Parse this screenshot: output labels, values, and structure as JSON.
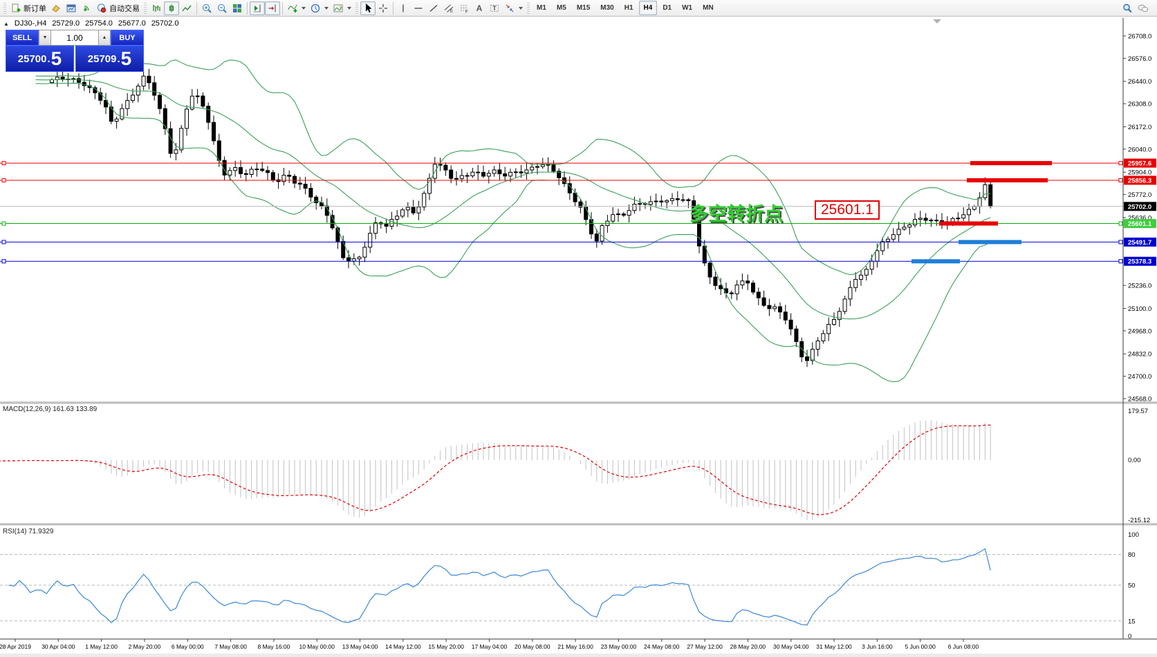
{
  "toolbar": {
    "new_order_label": "新订单",
    "auto_trading_label": "自动交易",
    "timeframes": [
      "M1",
      "M5",
      "M15",
      "M30",
      "H1",
      "H4",
      "D1",
      "W1",
      "MN"
    ],
    "active_timeframe": "H4"
  },
  "chart": {
    "header": {
      "expand_icon": "▲",
      "title": "DJ30-,H4",
      "open": "25729.0",
      "high": "25754.0",
      "low": "25677.0",
      "close": "25702.0"
    },
    "trade_panel": {
      "sell_label": "SELL",
      "buy_label": "BUY",
      "volume": "1.00",
      "sell_price_main": "25700",
      "sell_price_frac": "5",
      "buy_price_main": "25709",
      "buy_price_frac": "5"
    },
    "annotation": {
      "text": "多空转折点",
      "price_label": "25601.1"
    }
  },
  "chart_data": {
    "type": "candlestick",
    "symbol": "DJ30-",
    "timeframe": "H4",
    "last_ohlc": {
      "open": 25729.0,
      "high": 25754.0,
      "low": 25677.0,
      "close": 25702.0
    },
    "bid": 25700.5,
    "ask": 25709.5,
    "current_price": 25702.0,
    "price_axis_ticks": [
      26708.0,
      26576.0,
      26440.0,
      26308.0,
      26172.0,
      26040.0,
      25904.0,
      25772.0,
      25636.0,
      25236.0,
      25100.0,
      24968.0,
      24832.0,
      24700.0,
      24568.0
    ],
    "time_axis_labels": [
      "28 Apr 2019",
      "30 Apr 04:00",
      "1 May 12:00",
      "2 May 20:00",
      "6 May 00:00",
      "7 May 08:00",
      "8 May 16:00",
      "10 May 00:00",
      "13 May 04:00",
      "14 May 12:00",
      "15 May 20:00",
      "17 May 04:00",
      "20 May 08:00",
      "21 May 16:00",
      "23 May 00:00",
      "24 May 08:00",
      "27 May 12:00",
      "28 May 20:00",
      "30 May 04:00",
      "31 May 12:00",
      "3 Jun 16:00",
      "5 Jun 00:00",
      "6 Jun 08:00"
    ],
    "levels": [
      {
        "price": 25957.6,
        "line_color": "#f20000",
        "badge_bg": "#e80000",
        "thick": [
          1403,
          1521
        ],
        "thick_color": "#e80000"
      },
      {
        "price": 25856.3,
        "line_color": "#f20000",
        "badge_bg": "#e80000",
        "thick": [
          1398,
          1515
        ],
        "thick_color": "#e80000"
      },
      {
        "price": 25601.1,
        "line_color": "#00b400",
        "badge_bg": "#3fce3f",
        "thick": [
          1358,
          1443
        ],
        "thick_color": "#e80000"
      },
      {
        "price": 25491.7,
        "line_color": "#0000d8",
        "badge_bg": "#0000d0",
        "thick": [
          1386,
          1477
        ],
        "thick_color": "#1e7fd8"
      },
      {
        "price": 25378.3,
        "line_color": "#0000d8",
        "badge_bg": "#0000d0",
        "thick": [
          1318,
          1388
        ],
        "thick_color": "#1e7fd8"
      }
    ],
    "price_path": [
      [
        75,
        26450
      ],
      [
        120,
        26440
      ],
      [
        135,
        26390
      ],
      [
        150,
        26310
      ],
      [
        163,
        26160
      ],
      [
        172,
        26250
      ],
      [
        185,
        26330
      ],
      [
        200,
        26430
      ],
      [
        210,
        26480
      ],
      [
        222,
        26370
      ],
      [
        235,
        26210
      ],
      [
        248,
        26000
      ],
      [
        256,
        26050
      ],
      [
        268,
        26280
      ],
      [
        278,
        26360
      ],
      [
        290,
        26330
      ],
      [
        302,
        26180
      ],
      [
        313,
        26010
      ],
      [
        325,
        25900
      ],
      [
        340,
        25940
      ],
      [
        355,
        25880
      ],
      [
        370,
        25920
      ],
      [
        385,
        25900
      ],
      [
        400,
        25860
      ],
      [
        415,
        25900
      ],
      [
        428,
        25830
      ],
      [
        443,
        25790
      ],
      [
        458,
        25720
      ],
      [
        470,
        25700
      ],
      [
        483,
        25560
      ],
      [
        495,
        25400
      ],
      [
        508,
        25360
      ],
      [
        520,
        25400
      ],
      [
        533,
        25530
      ],
      [
        546,
        25640
      ],
      [
        558,
        25580
      ],
      [
        572,
        25630
      ],
      [
        586,
        25690
      ],
      [
        600,
        25670
      ],
      [
        614,
        25790
      ],
      [
        628,
        25960
      ],
      [
        642,
        25910
      ],
      [
        656,
        25850
      ],
      [
        670,
        25890
      ],
      [
        684,
        25920
      ],
      [
        698,
        25880
      ],
      [
        712,
        25900
      ],
      [
        726,
        25880
      ],
      [
        740,
        25910
      ],
      [
        754,
        25920
      ],
      [
        768,
        25920
      ],
      [
        782,
        25940
      ],
      [
        796,
        25930
      ],
      [
        810,
        25880
      ],
      [
        824,
        25790
      ],
      [
        838,
        25700
      ],
      [
        852,
        25560
      ],
      [
        862,
        25480
      ],
      [
        872,
        25600
      ],
      [
        886,
        25670
      ],
      [
        900,
        25650
      ],
      [
        914,
        25690
      ],
      [
        928,
        25710
      ],
      [
        942,
        25730
      ],
      [
        956,
        25750
      ],
      [
        970,
        25740
      ],
      [
        984,
        25740
      ],
      [
        998,
        25710
      ],
      [
        1006,
        25580
      ],
      [
        1014,
        25420
      ],
      [
        1026,
        25300
      ],
      [
        1040,
        25220
      ],
      [
        1054,
        25160
      ],
      [
        1066,
        25230
      ],
      [
        1080,
        25270
      ],
      [
        1094,
        25180
      ],
      [
        1108,
        25110
      ],
      [
        1122,
        25090
      ],
      [
        1136,
        25030
      ],
      [
        1148,
        24940
      ],
      [
        1158,
        24840
      ],
      [
        1168,
        24800
      ],
      [
        1180,
        24900
      ],
      [
        1194,
        24960
      ],
      [
        1208,
        25040
      ],
      [
        1222,
        25160
      ],
      [
        1235,
        25290
      ],
      [
        1250,
        25300
      ],
      [
        1264,
        25400
      ],
      [
        1278,
        25490
      ],
      [
        1292,
        25550
      ],
      [
        1306,
        25590
      ],
      [
        1320,
        25610
      ],
      [
        1334,
        25620
      ],
      [
        1348,
        25610
      ],
      [
        1362,
        25620
      ],
      [
        1376,
        25630
      ],
      [
        1390,
        25645
      ],
      [
        1402,
        25665
      ],
      [
        1412,
        25705
      ],
      [
        1421,
        25805
      ],
      [
        1429,
        25830
      ],
      [
        1435,
        25702
      ]
    ],
    "indicators": {
      "bollinger": {
        "period": 20,
        "deviation": 2,
        "color": "#3aa05a"
      },
      "macd": {
        "label": "MACD(12,26,9)",
        "display": "MACD(12,26,9) 161.63 133.89",
        "macd_value": 161.63,
        "signal_value": 133.89,
        "scale_labels": [
          "179.57",
          "0.00",
          "-215.12"
        ],
        "scale_max": 179.57,
        "scale_min": -215.12,
        "histogram_color": "#c2c2c2",
        "signal_color": "#e00000"
      },
      "rsi": {
        "label": "RSI(14)",
        "display": "RSI(14) 71.9329",
        "value": 71.9329,
        "levels": [
          80,
          50,
          15
        ],
        "scale_top_label": "100",
        "scale_bottom_label": "0",
        "line_color": "#3a87d8"
      }
    }
  }
}
